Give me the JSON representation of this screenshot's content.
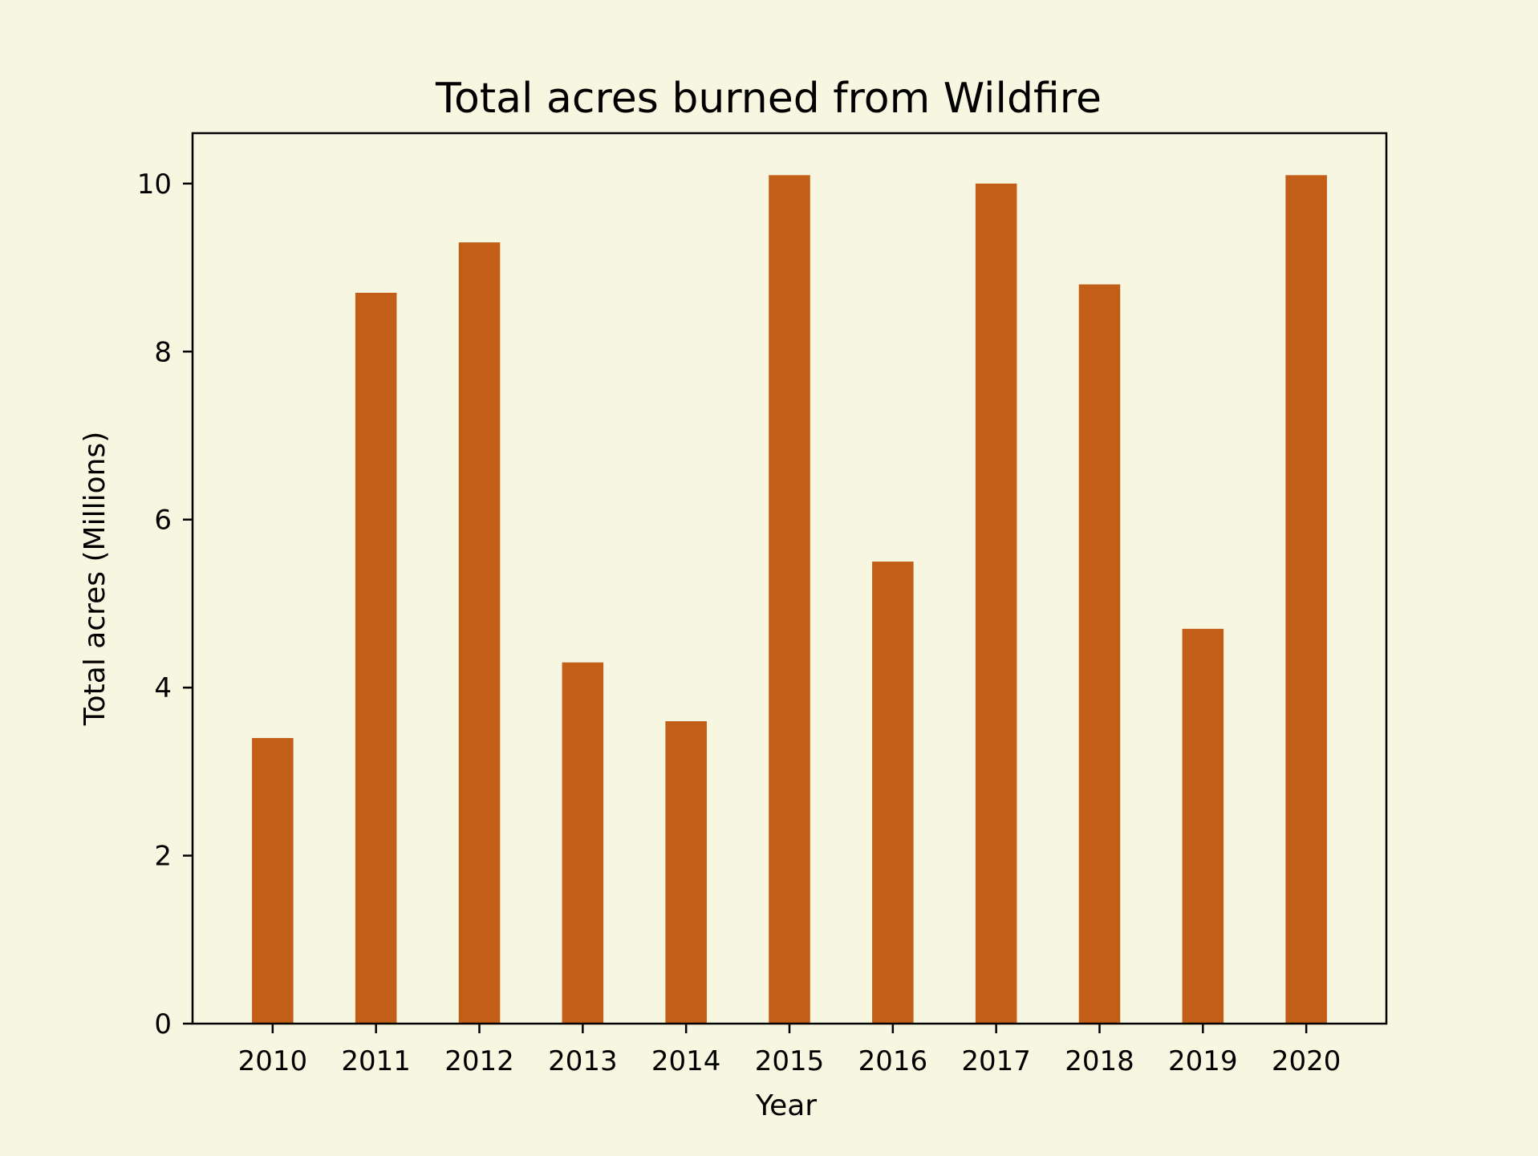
{
  "chart_data": {
    "type": "bar",
    "title": "Total acres burned from Wildfire",
    "xlabel": "Year",
    "ylabel": "Total acres (Millions)",
    "categories": [
      "2010",
      "2011",
      "2012",
      "2013",
      "2014",
      "2015",
      "2016",
      "2017",
      "2018",
      "2019",
      "2020"
    ],
    "values": [
      3.4,
      8.7,
      9.3,
      4.3,
      3.6,
      10.1,
      5.5,
      10.0,
      8.8,
      4.7,
      10.1
    ],
    "ylim": [
      0,
      10.6
    ],
    "yticks": [
      "0",
      "2",
      "4",
      "6",
      "8",
      "10"
    ],
    "grid": false,
    "legend": "none",
    "bar_color": "#c25e18",
    "background_color": "#f7f7e1"
  }
}
